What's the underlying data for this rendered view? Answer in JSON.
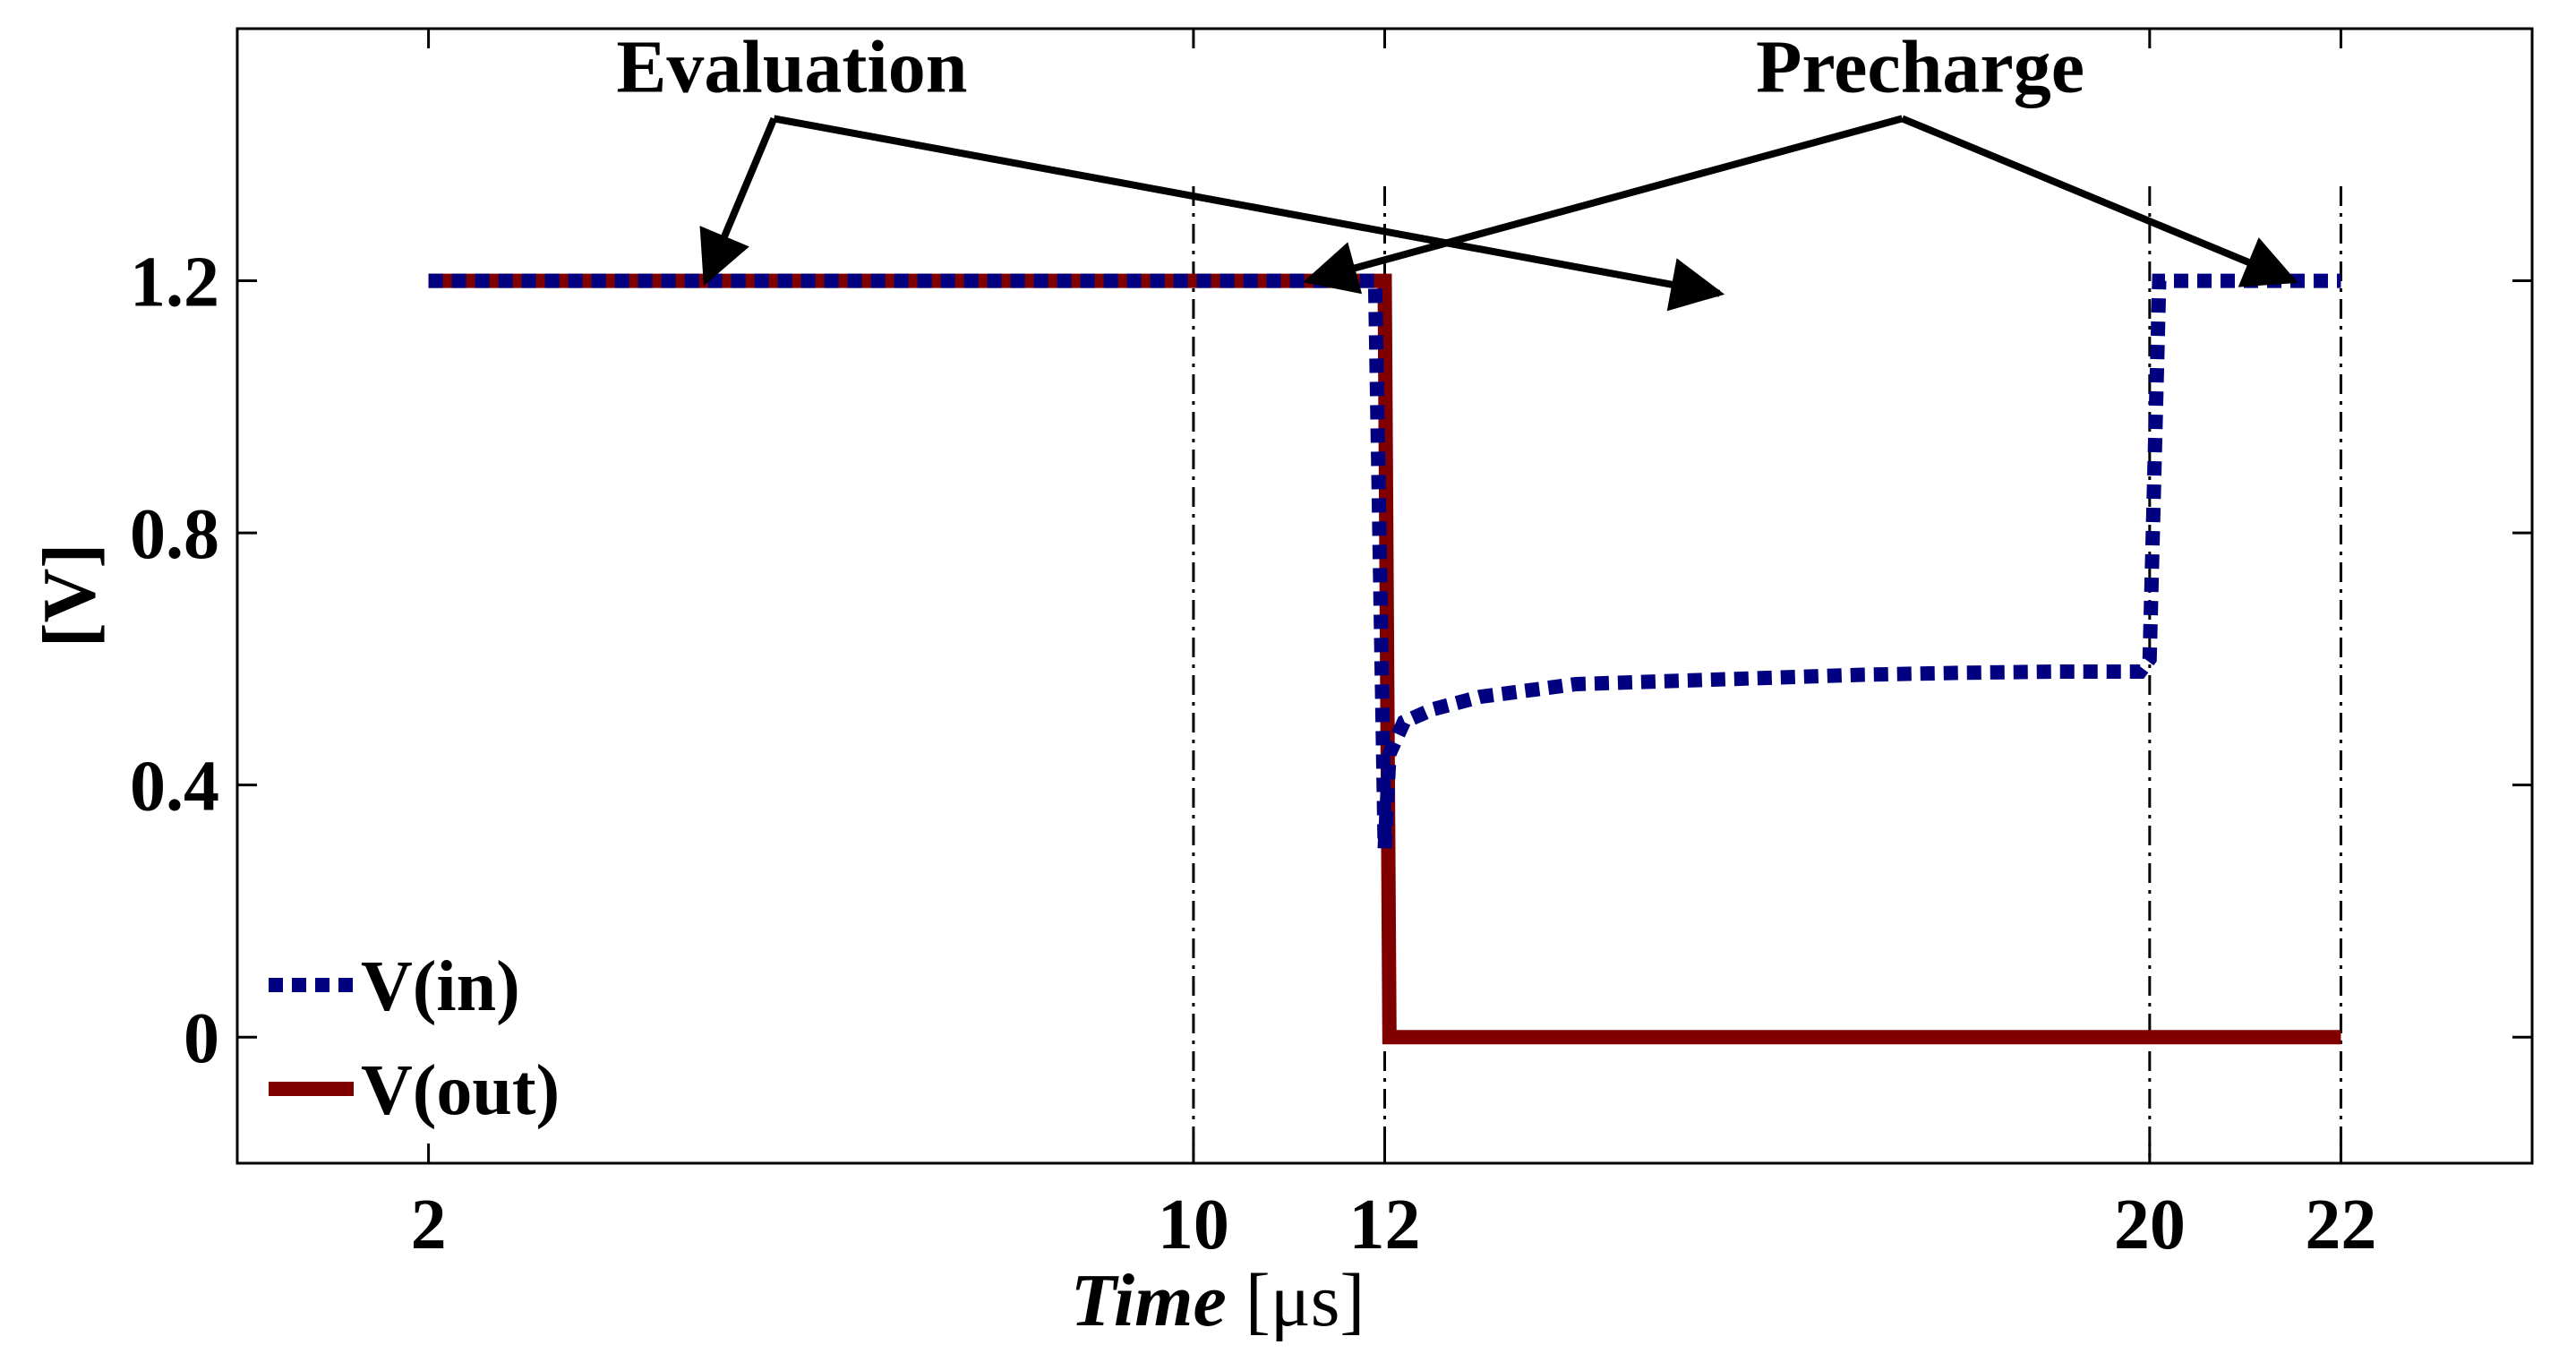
{
  "chart_data": {
    "type": "line",
    "title": "",
    "xlabel_italic": "Time",
    "xlabel_unit": "[μs]",
    "ylabel": "[V]",
    "xlim": [
      0,
      24
    ],
    "ylim": [
      -0.2,
      1.6
    ],
    "xticks": [
      2,
      10,
      12,
      20,
      22
    ],
    "yticks": [
      0,
      0.4,
      0.8,
      1.2
    ],
    "ytick_labels": [
      "0",
      "0.4",
      "0.8",
      "1.2"
    ],
    "grid": false,
    "vlines": [
      10,
      12,
      20,
      22
    ],
    "legend_position": "bottom-left",
    "series": [
      {
        "name": "V(in)",
        "style": "dotted",
        "color": "#000080",
        "x": [
          2,
          10,
          11.9,
          12.0,
          12.05,
          12.2,
          12.5,
          13,
          14,
          15,
          16,
          17,
          18,
          19,
          19.9,
          20.0,
          20.1,
          20.3,
          22
        ],
        "y": [
          1.2,
          1.2,
          1.2,
          0.3,
          0.45,
          0.5,
          0.52,
          0.54,
          0.56,
          0.565,
          0.57,
          0.575,
          0.578,
          0.58,
          0.58,
          0.6,
          1.2,
          1.2,
          1.2
        ]
      },
      {
        "name": "V(out)",
        "style": "solid",
        "color": "#800000",
        "x": [
          2,
          11.9,
          12.0,
          12.05,
          22
        ],
        "y": [
          1.2,
          1.2,
          1.2,
          0,
          0
        ]
      }
    ],
    "annotations": [
      {
        "text": "Evaluation",
        "x": 5.8,
        "y": 1.5,
        "arrows_to": [
          [
            4.9,
            1.2
          ],
          [
            15.5,
            1.18
          ]
        ]
      },
      {
        "text": "Precharge",
        "x": 17.6,
        "y": 1.5,
        "arrows_to": [
          [
            11.2,
            1.2
          ],
          [
            21.5,
            1.2
          ]
        ]
      }
    ]
  }
}
